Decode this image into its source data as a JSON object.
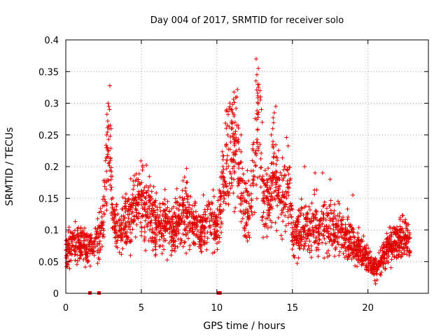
{
  "chart_data": {
    "type": "scatter",
    "title": "Day 004 of 2017, SRMTID for receiver solo",
    "xlabel": "GPS time / hours",
    "ylabel": "SRMTID / TECUs",
    "xlim": [
      0,
      24
    ],
    "ylim": [
      0,
      0.4
    ],
    "x_ticks": [
      0,
      5,
      10,
      15,
      20
    ],
    "x_tick_labels": [
      "0",
      "5",
      "10",
      "15",
      "20"
    ],
    "y_ticks": [
      0,
      0.05,
      0.1,
      0.15,
      0.2,
      0.25,
      0.3,
      0.35,
      0.4
    ],
    "y_tick_labels": [
      "0",
      "0.05",
      "0.1",
      "0.15",
      "0.2",
      "0.25",
      "0.3",
      "0.35",
      "0.4"
    ],
    "grid": true,
    "marker": "+",
    "color": "#e00000",
    "series": [
      {
        "name": "SRMTID",
        "profile": [
          [
            0.0,
            0.07
          ],
          [
            0.5,
            0.075
          ],
          [
            1.0,
            0.08
          ],
          [
            1.5,
            0.07
          ],
          [
            2.0,
            0.08
          ],
          [
            2.4,
            0.1
          ],
          [
            2.7,
            0.2
          ],
          [
            2.9,
            0.24
          ],
          [
            3.1,
            0.12
          ],
          [
            3.5,
            0.09
          ],
          [
            4.0,
            0.11
          ],
          [
            4.5,
            0.13
          ],
          [
            5.0,
            0.15
          ],
          [
            5.5,
            0.13
          ],
          [
            6.0,
            0.11
          ],
          [
            7.0,
            0.1
          ],
          [
            7.5,
            0.12
          ],
          [
            8.0,
            0.13
          ],
          [
            8.5,
            0.11
          ],
          [
            9.0,
            0.1
          ],
          [
            9.5,
            0.12
          ],
          [
            10.0,
            0.1
          ],
          [
            10.3,
            0.15
          ],
          [
            10.8,
            0.22
          ],
          [
            11.2,
            0.24
          ],
          [
            11.6,
            0.16
          ],
          [
            12.0,
            0.13
          ],
          [
            12.3,
            0.15
          ],
          [
            12.6,
            0.24
          ],
          [
            12.8,
            0.27
          ],
          [
            13.0,
            0.16
          ],
          [
            13.4,
            0.14
          ],
          [
            13.7,
            0.2
          ],
          [
            14.0,
            0.17
          ],
          [
            14.4,
            0.15
          ],
          [
            14.8,
            0.17
          ],
          [
            15.0,
            0.09
          ],
          [
            16.0,
            0.1
          ],
          [
            17.0,
            0.11
          ],
          [
            18.0,
            0.1
          ],
          [
            19.0,
            0.08
          ],
          [
            19.8,
            0.06
          ],
          [
            20.3,
            0.045
          ],
          [
            20.6,
            0.04
          ],
          [
            21.0,
            0.06
          ],
          [
            21.5,
            0.08
          ],
          [
            22.0,
            0.085
          ],
          [
            22.5,
            0.085
          ],
          [
            22.8,
            0.08
          ]
        ],
        "spikes": [
          [
            2.8,
            0.3
          ],
          [
            2.85,
            0.295
          ],
          [
            2.9,
            0.29
          ],
          [
            2.95,
            0.265
          ],
          [
            3.0,
            0.26
          ],
          [
            2.7,
            0.25
          ],
          [
            2.75,
            0.23
          ],
          [
            11.0,
            0.29
          ],
          [
            11.05,
            0.285
          ],
          [
            11.2,
            0.27
          ],
          [
            11.3,
            0.265
          ],
          [
            11.4,
            0.265
          ],
          [
            11.6,
            0.25
          ],
          [
            12.6,
            0.37
          ],
          [
            12.65,
            0.345
          ],
          [
            12.7,
            0.33
          ],
          [
            12.75,
            0.325
          ],
          [
            12.85,
            0.32
          ],
          [
            12.9,
            0.31
          ],
          [
            12.95,
            0.29
          ],
          [
            13.0,
            0.27
          ],
          [
            13.9,
            0.295
          ],
          [
            13.8,
            0.285
          ],
          [
            13.7,
            0.26
          ],
          [
            13.6,
            0.25
          ],
          [
            11.2,
            0.22
          ],
          [
            10.4,
            0.2
          ],
          [
            14.5,
            0.2
          ],
          [
            15.8,
            0.2
          ],
          [
            16.5,
            0.19
          ],
          [
            17.0,
            0.19
          ],
          [
            17.5,
            0.18
          ],
          [
            19.0,
            0.155
          ],
          [
            20.5,
            0.015
          ],
          [
            20.45,
            0.02
          ]
        ],
        "gap_markers_x": [
          1.6,
          2.2,
          10.1,
          10.2
        ]
      }
    ]
  }
}
